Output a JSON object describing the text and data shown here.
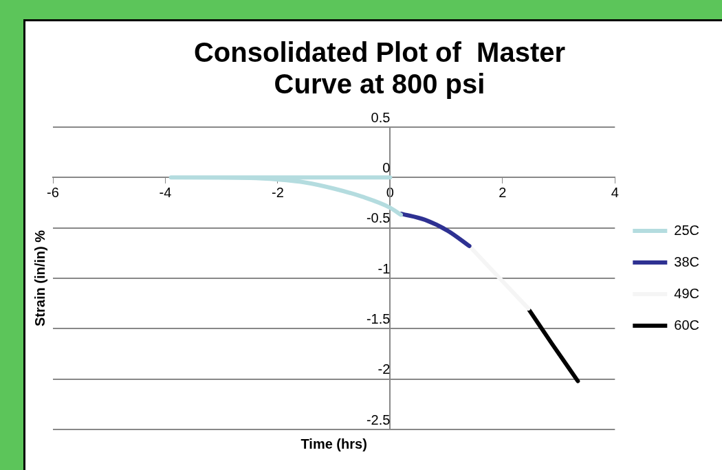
{
  "chart_data": {
    "type": "line",
    "title": "Consolidated Plot of  Master Curve at 800 psi",
    "xlabel": "Time (hrs)",
    "ylabel": "Strain (in/in) %",
    "xlim": [
      -6,
      4
    ],
    "xticks": [
      -6,
      -4,
      -2,
      0,
      2,
      4
    ],
    "ylim": [
      -2.5,
      0.5
    ],
    "yticks": [
      0.5,
      0,
      -0.5,
      -1,
      -1.5,
      -2,
      -2.5
    ],
    "grid": "y",
    "legend": "right",
    "marker": "none",
    "line_style": "solid",
    "series": [
      {
        "name": "25C",
        "color": "#b4dcdf",
        "x": [
          0,
          -3.9,
          -2.5,
          -2,
          -1.5,
          -1,
          -0.5,
          0,
          0.19
        ],
        "values": [
          0,
          0,
          -0.005,
          -0.02,
          -0.05,
          -0.11,
          -0.19,
          -0.3,
          -0.37
        ]
      },
      {
        "name": "38C",
        "color": "#2e3192",
        "x": [
          0.2,
          0.62,
          1.03,
          1.41
        ],
        "values": [
          -0.36,
          -0.42,
          -0.53,
          -0.68
        ]
      },
      {
        "name": "49C",
        "color": "#f5f5f5",
        "x": [
          1.41,
          1.95,
          2.46
        ],
        "values": [
          -0.68,
          -1.0,
          -1.3
        ]
      },
      {
        "name": "60C",
        "color": "#000000",
        "x": [
          2.48,
          2.88,
          3.34
        ],
        "values": [
          -1.32,
          -1.65,
          -2.02
        ]
      }
    ]
  }
}
